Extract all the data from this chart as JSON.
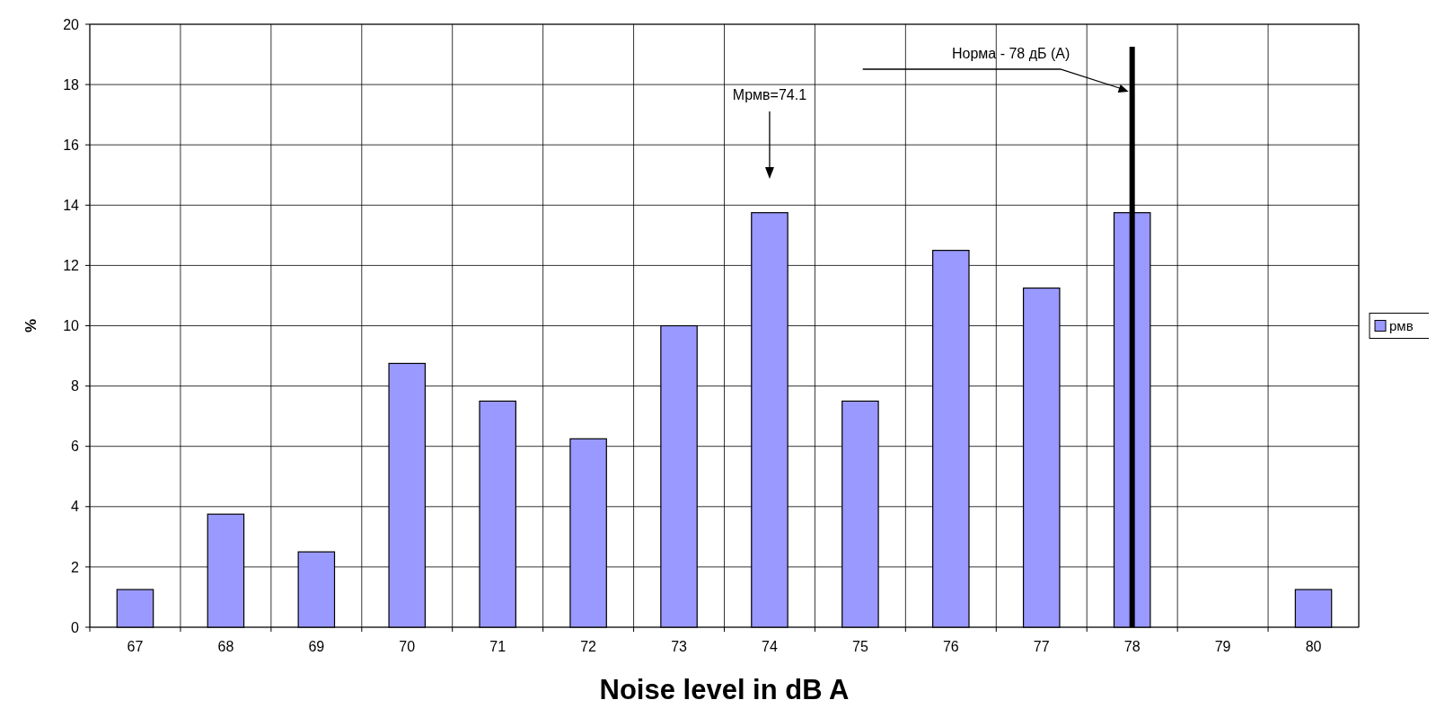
{
  "chart_data": {
    "type": "bar",
    "xlabel": "Noise level in dB A",
    "ylabel": "%",
    "categories": [
      "67",
      "68",
      "69",
      "70",
      "71",
      "72",
      "73",
      "74",
      "75",
      "76",
      "77",
      "78",
      "79",
      "80"
    ],
    "series": [
      {
        "name": "рмв",
        "color": "#9999ff",
        "values": [
          1.25,
          3.75,
          2.5,
          8.75,
          7.5,
          6.25,
          10,
          13.75,
          7.5,
          12.5,
          11.25,
          13.75,
          0,
          1.25
        ]
      }
    ],
    "ylim": [
      0,
      20
    ],
    "yticks": [
      0,
      2,
      4,
      6,
      8,
      10,
      12,
      14,
      16,
      18,
      20
    ],
    "grid": true,
    "legend": "right",
    "ref_lines": [
      {
        "axis": "x",
        "value": "78",
        "label": "Норма - 78 дБ (А)",
        "color": "#000000"
      }
    ],
    "annotations": [
      "Мрмв=74.1"
    ]
  }
}
